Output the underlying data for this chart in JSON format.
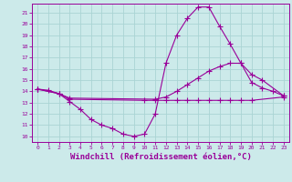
{
  "background_color": "#cceaea",
  "grid_color": "#aad4d4",
  "line_color": "#990099",
  "xlabel": "Windchill (Refroidissement éolien,°C)",
  "xlabel_fontsize": 6.5,
  "ylabel_values": [
    10,
    11,
    12,
    13,
    14,
    15,
    16,
    17,
    18,
    19,
    20,
    21
  ],
  "xlim": [
    -0.5,
    23.5
  ],
  "ylim": [
    9.5,
    21.8
  ],
  "line1_x": [
    0,
    1,
    2,
    3,
    4,
    5,
    6,
    7,
    8,
    9,
    10,
    11,
    12,
    13,
    14,
    15,
    16,
    17,
    18,
    19,
    20,
    21,
    22,
    23
  ],
  "line1_y": [
    14.2,
    14.1,
    13.8,
    13.1,
    12.4,
    11.5,
    11.0,
    10.7,
    10.2,
    10.0,
    10.2,
    12.0,
    16.5,
    19.0,
    20.5,
    21.5,
    21.5,
    19.8,
    18.2,
    16.5,
    14.8,
    14.3,
    14.0,
    13.6
  ],
  "line2_x": [
    0,
    2,
    3,
    11,
    12,
    13,
    14,
    15,
    16,
    17,
    18,
    19,
    20,
    21,
    23
  ],
  "line2_y": [
    14.2,
    13.8,
    13.4,
    13.3,
    13.5,
    14.0,
    14.6,
    15.2,
    15.8,
    16.2,
    16.5,
    16.5,
    15.5,
    15.0,
    13.6
  ],
  "line3_x": [
    0,
    2,
    3,
    10,
    11,
    12,
    13,
    14,
    15,
    16,
    17,
    18,
    19,
    20,
    23
  ],
  "line3_y": [
    14.2,
    13.8,
    13.3,
    13.2,
    13.2,
    13.2,
    13.2,
    13.2,
    13.2,
    13.2,
    13.2,
    13.2,
    13.2,
    13.2,
    13.5
  ]
}
